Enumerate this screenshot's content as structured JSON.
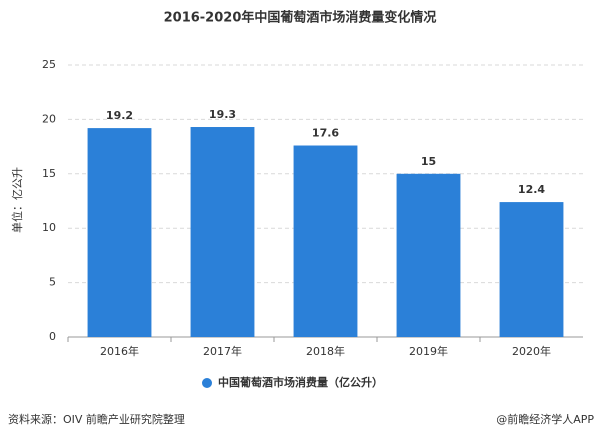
{
  "chart_data": {
    "type": "bar",
    "title": "2016-2020年中国葡萄酒市场消费量变化情况",
    "y_label": "单位：亿公升",
    "categories": [
      "2016年",
      "2017年",
      "2018年",
      "2019年",
      "2020年"
    ],
    "series": [
      {
        "name": "中国葡萄酒市场消费量（亿公升）",
        "color": "#2b80d8",
        "values": [
          19.2,
          19.3,
          17.6,
          15,
          12.4
        ]
      }
    ],
    "ylim": [
      0,
      25
    ],
    "yticks": [
      0,
      5,
      10,
      15,
      20,
      25
    ],
    "grid": true,
    "source": "资料来源：OIV 前瞻产业研究院整理",
    "credit": "@前瞻经济学人APP"
  }
}
